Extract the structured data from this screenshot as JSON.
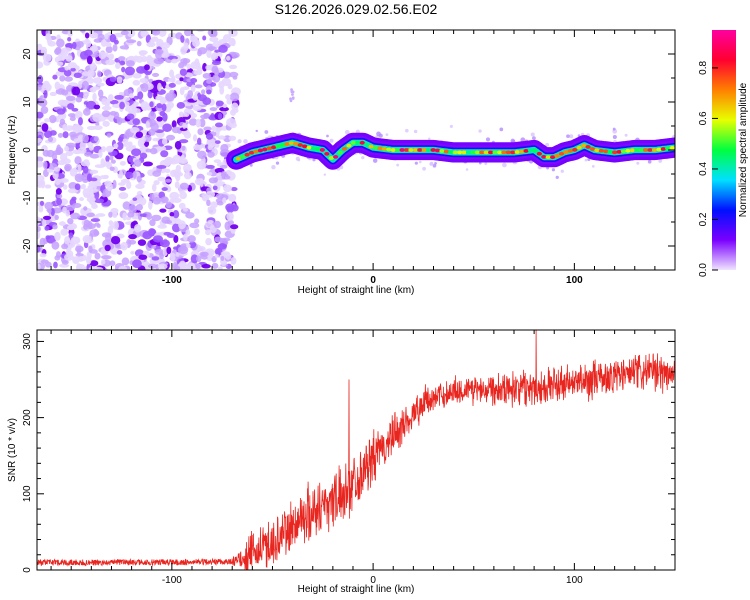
{
  "title": "S126.2026.029.02.56.E02",
  "chart_data": [
    {
      "type": "heatmap",
      "xlabel": "Height of straight line (km)",
      "ylabel": "Frequency (Hz)",
      "xlim": [
        -167,
        150
      ],
      "ylim": [
        -25,
        25
      ],
      "x_ticks": [
        -100,
        0,
        100
      ],
      "x_tick_labels": [
        "-100",
        "0",
        "100"
      ],
      "y_ticks": [
        -20,
        -10,
        0,
        10,
        20
      ],
      "y_tick_labels": [
        "-20",
        "-10",
        "0",
        "10",
        "20"
      ],
      "colorbar": {
        "label": "Normalized spectral amplitude",
        "range": [
          0.0,
          0.95
        ],
        "ticks": [
          0.0,
          0.2,
          0.4,
          0.6,
          0.8
        ],
        "tick_labels": [
          "0.0",
          "0.2",
          "0.4",
          "0.6",
          "0.8"
        ],
        "colors": [
          "#f0e4ff",
          "#7a00ff",
          "#0010ff",
          "#00e0ff",
          "#00ff40",
          "#e8ff00",
          "#ff8000",
          "#ff0030",
          "#ff00a0"
        ]
      },
      "noise_region_x": [
        -167,
        -68
      ],
      "ridge": {
        "x": [
          -68,
          -60,
          -50,
          -40,
          -32,
          -25,
          -20,
          -15,
          -10,
          -5,
          0,
          10,
          20,
          30,
          40,
          50,
          60,
          70,
          80,
          85,
          90,
          95,
          100,
          105,
          110,
          120,
          130,
          140,
          150
        ],
        "y": [
          -2,
          -0.5,
          0.5,
          1.5,
          0.5,
          0,
          -2,
          0,
          1.5,
          1.5,
          0.5,
          0,
          0,
          0,
          -0.5,
          -0.5,
          -0.5,
          -0.5,
          0,
          -1.5,
          -1.5,
          -0.5,
          0,
          1,
          0,
          -0.5,
          0,
          0,
          0.5
        ]
      }
    },
    {
      "type": "line",
      "xlabel": "Height of straight line (km)",
      "ylabel": "SNR (10 * v/v)",
      "xlim": [
        -167,
        150
      ],
      "ylim": [
        0,
        315
      ],
      "x_ticks": [
        -100,
        0,
        100
      ],
      "x_tick_labels": [
        "-100",
        "0",
        "100"
      ],
      "y_ticks": [
        0,
        100,
        200,
        300
      ],
      "y_tick_labels": [
        "0",
        "100",
        "200",
        "300"
      ],
      "series": [
        {
          "name": "SNR",
          "color": "#e8251f",
          "trend_x": [
            -167,
            -100,
            -70,
            -60,
            -45,
            -35,
            -25,
            -15,
            -5,
            5,
            15,
            25,
            40,
            60,
            80,
            100,
            120,
            135,
            150
          ],
          "trend_y": [
            10,
            10,
            11,
            20,
            45,
            70,
            85,
            100,
            130,
            160,
            190,
            220,
            235,
            240,
            240,
            245,
            255,
            260,
            258
          ],
          "noise_amplitude_x": [
            -167,
            -70,
            -60,
            -30,
            0,
            30,
            80,
            150
          ],
          "noise_amplitude_y": [
            4,
            4,
            30,
            40,
            35,
            18,
            25,
            25
          ],
          "spikes": [
            {
              "x": -12,
              "y": 250
            },
            {
              "x": 81,
              "y": 315
            }
          ]
        }
      ]
    }
  ]
}
